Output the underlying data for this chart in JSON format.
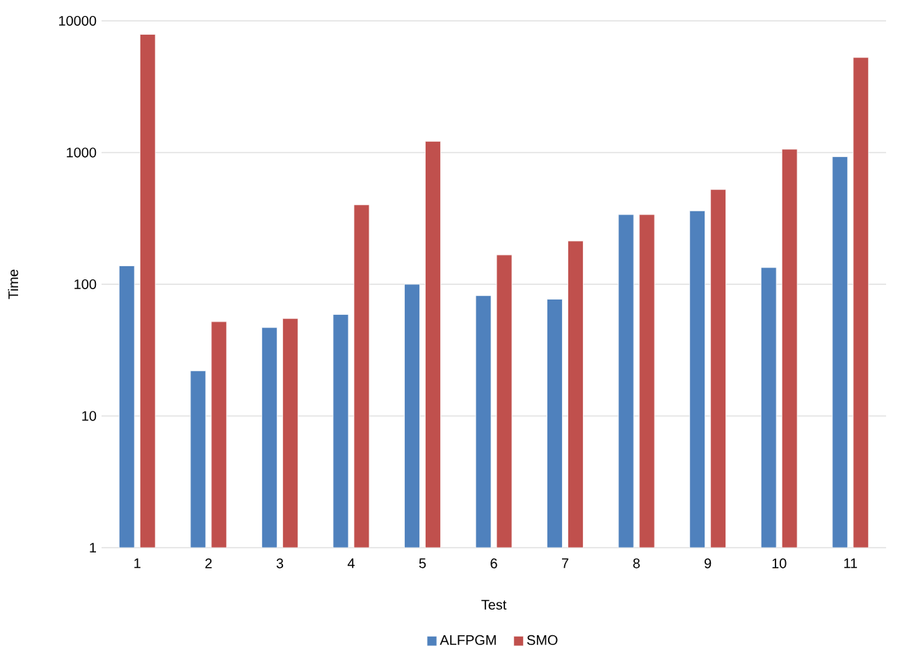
{
  "chart_data": {
    "type": "bar",
    "xlabel": "Test",
    "ylabel": "Time",
    "categories": [
      "1",
      "2",
      "3",
      "4",
      "5",
      "6",
      "7",
      "8",
      "9",
      "10",
      "11"
    ],
    "series": [
      {
        "name": "ALFPGM",
        "color": "#4f81bd",
        "values": [
          138,
          22,
          47,
          59,
          100,
          82,
          77,
          338,
          361,
          134,
          931
        ]
      },
      {
        "name": "SMO",
        "color": "#c0504d",
        "values": [
          7900,
          52,
          55,
          401,
          1217,
          167,
          213,
          338,
          524,
          1060,
          5270
        ]
      }
    ],
    "log": "y",
    "ylim": [
      1,
      10000
    ],
    "yticks": [
      1,
      10,
      100,
      1000,
      10000
    ],
    "grid": "y",
    "legend": "bottom"
  }
}
